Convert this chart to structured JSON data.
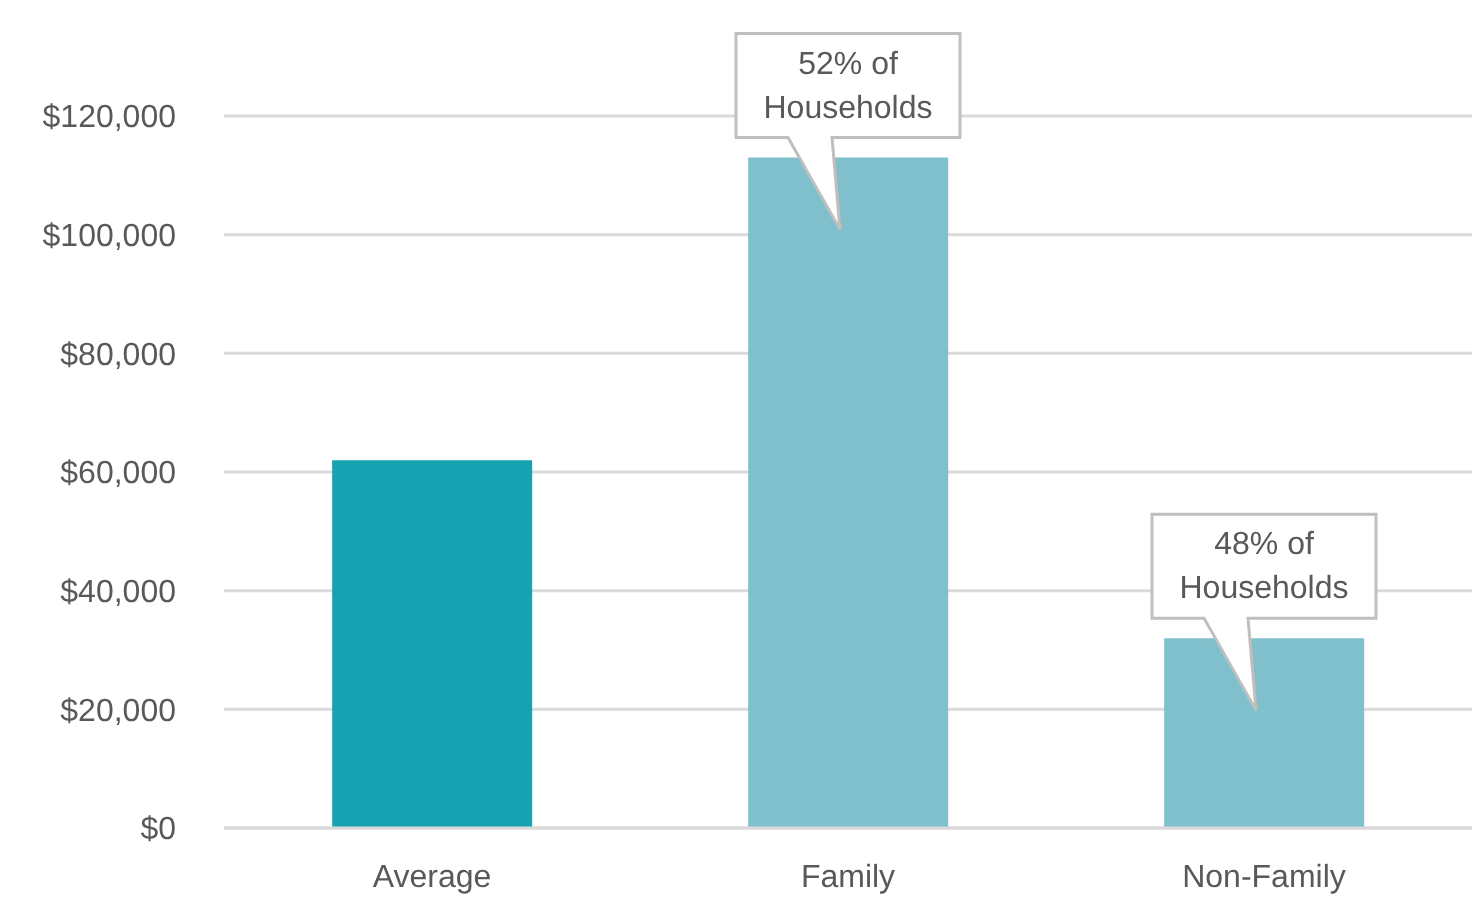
{
  "chart_data": {
    "type": "bar",
    "categories": [
      "Average",
      "Family",
      "Non-Family"
    ],
    "values": [
      62000,
      113000,
      32000
    ],
    "colors": [
      "#17a2b1",
      "#7fc0cc",
      "#7fc0cc"
    ],
    "ylim": [
      0,
      120000
    ],
    "yticks": [
      {
        "value": 0,
        "label": "$0"
      },
      {
        "value": 20000,
        "label": "$20,000"
      },
      {
        "value": 40000,
        "label": "$40,000"
      },
      {
        "value": 60000,
        "label": "$60,000"
      },
      {
        "value": 80000,
        "label": "$80,000"
      },
      {
        "value": 100000,
        "label": "$100,000"
      },
      {
        "value": 120000,
        "label": "$120,000"
      }
    ],
    "grid": "y",
    "annotations": [
      {
        "text": "52% of Households",
        "x": "Family",
        "y": 113000
      },
      {
        "text": "48% of Households",
        "x": "Non-Family",
        "y": 32000
      }
    ]
  }
}
